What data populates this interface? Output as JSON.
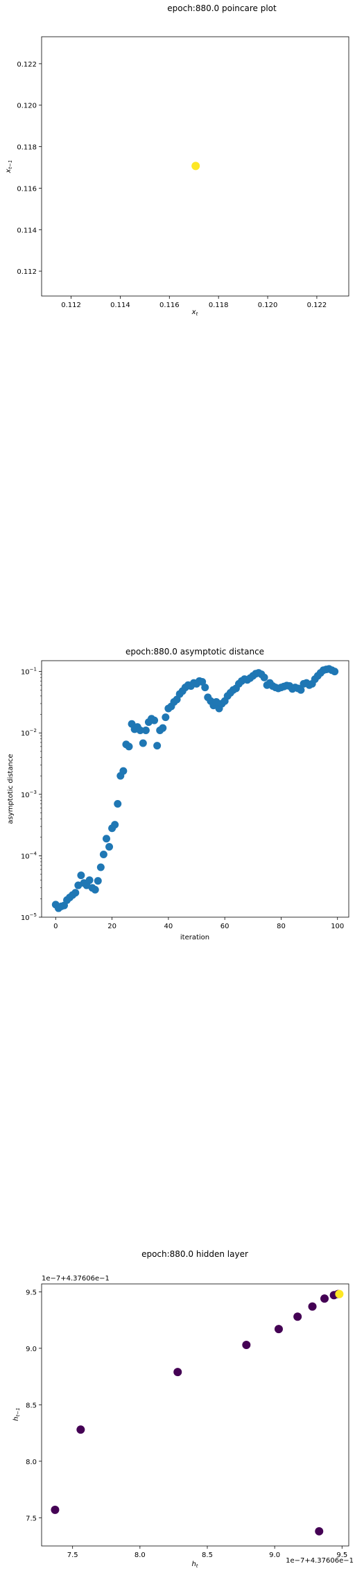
{
  "colors": {
    "blue": "#1f77b4",
    "viridis_yellow": "#fde725",
    "viridis_purple": "#440154",
    "axis": "#000000"
  },
  "chart_data": [
    {
      "type": "scatter",
      "title": "epoch:880.0 poincare plot",
      "xlabel": "x_t",
      "ylabel": "x_{t-1}",
      "xlim": [
        0.1108,
        0.1233
      ],
      "ylim": [
        0.1108,
        0.1233
      ],
      "xticks": [
        0.112,
        0.114,
        0.116,
        0.118,
        0.12,
        0.122
      ],
      "yticks": [
        0.112,
        0.114,
        0.116,
        0.118,
        0.12,
        0.122
      ],
      "xtick_labels": [
        "0.112",
        "0.114",
        "0.116",
        "0.118",
        "0.120",
        "0.122"
      ],
      "ytick_labels": [
        "0.112",
        "0.114",
        "0.116",
        "0.118",
        "0.120",
        "0.122"
      ],
      "points": [
        {
          "x": 0.11707,
          "y": 0.11707
        }
      ],
      "color": "viridis_yellow"
    },
    {
      "type": "scatter",
      "title": "epoch:880.0 asymptotic distance",
      "xlabel": "iteration",
      "ylabel": "asymptotic distance",
      "yscale": "log",
      "xlim": [
        -5,
        104
      ],
      "ylim": [
        1e-05,
        0.15
      ],
      "xticks": [
        0,
        20,
        40,
        60,
        80,
        100
      ],
      "xtick_labels": [
        "0",
        "20",
        "40",
        "60",
        "80",
        "100"
      ],
      "yticks": [
        1e-05,
        0.0001,
        0.001,
        0.01,
        0.1
      ],
      "ytick_labels": [
        [
          "10",
          "−5"
        ],
        [
          "10",
          "−4"
        ],
        [
          "10",
          "−3"
        ],
        [
          "10",
          "−2"
        ],
        [
          "10",
          "−1"
        ]
      ],
      "x": [
        0,
        1,
        2,
        3,
        4,
        5,
        6,
        7,
        8,
        9,
        10,
        11,
        12,
        13,
        14,
        15,
        16,
        17,
        18,
        19,
        20,
        21,
        22,
        23,
        24,
        25,
        26,
        27,
        28,
        29,
        30,
        31,
        32,
        33,
        34,
        35,
        36,
        37,
        38,
        39,
        40,
        41,
        42,
        43,
        44,
        45,
        46,
        47,
        48,
        49,
        50,
        51,
        52,
        53,
        54,
        55,
        56,
        57,
        58,
        59,
        60,
        61,
        62,
        63,
        64,
        65,
        66,
        67,
        68,
        69,
        70,
        71,
        72,
        73,
        74,
        75,
        76,
        77,
        78,
        79,
        80,
        81,
        82,
        83,
        84,
        85,
        86,
        87,
        88,
        89,
        90,
        91,
        92,
        93,
        94,
        95,
        96,
        97,
        98,
        99
      ],
      "y": [
        1.6e-05,
        1.4e-05,
        1.5e-05,
        1.55e-05,
        1.9e-05,
        2.1e-05,
        2.3e-05,
        2.5e-05,
        3.3e-05,
        4.8e-05,
        3.6e-05,
        3.3e-05,
        4e-05,
        3e-05,
        2.8e-05,
        3.9e-05,
        6.5e-05,
        0.000105,
        0.00019,
        0.00014,
        0.00028,
        0.00032,
        0.0007,
        0.002,
        0.0024,
        0.0065,
        0.006,
        0.014,
        0.0115,
        0.0125,
        0.011,
        0.0068,
        0.011,
        0.015,
        0.017,
        0.016,
        0.0062,
        0.011,
        0.012,
        0.018,
        0.025,
        0.027,
        0.032,
        0.035,
        0.043,
        0.048,
        0.055,
        0.06,
        0.058,
        0.065,
        0.063,
        0.07,
        0.068,
        0.055,
        0.038,
        0.033,
        0.028,
        0.032,
        0.025,
        0.03,
        0.033,
        0.04,
        0.045,
        0.05,
        0.053,
        0.063,
        0.07,
        0.075,
        0.073,
        0.078,
        0.085,
        0.092,
        0.095,
        0.09,
        0.08,
        0.06,
        0.065,
        0.058,
        0.055,
        0.053,
        0.055,
        0.057,
        0.059,
        0.058,
        0.052,
        0.055,
        0.053,
        0.05,
        0.063,
        0.065,
        0.06,
        0.063,
        0.075,
        0.085,
        0.095,
        0.105,
        0.108,
        0.11,
        0.105,
        0.1
      ],
      "color": "blue"
    },
    {
      "type": "scatter",
      "title": "epoch:880.0 hidden layer",
      "xlabel": "h_t",
      "ylabel": "h_{t-1}",
      "offset_label_y": "1e−7+4.37606e−1",
      "offset_label_x": "1e−7+4.37606e−1",
      "xlim": [
        7.27,
        9.55
      ],
      "ylim": [
        7.25,
        9.57
      ],
      "xticks": [
        7.5,
        8.0,
        8.5,
        9.0,
        9.5
      ],
      "yticks": [
        7.5,
        8.0,
        8.5,
        9.0,
        9.5
      ],
      "xtick_labels": [
        "7.5",
        "8.0",
        "8.5",
        "9.0",
        "9.5"
      ],
      "ytick_labels": [
        "7.5",
        "8.0",
        "8.5",
        "9.0",
        "9.5"
      ],
      "points": [
        {
          "x": 7.37,
          "y": 7.57,
          "c": "viridis_purple"
        },
        {
          "x": 7.56,
          "y": 8.28,
          "c": "viridis_purple"
        },
        {
          "x": 8.28,
          "y": 8.79,
          "c": "viridis_purple"
        },
        {
          "x": 8.79,
          "y": 9.03,
          "c": "viridis_purple"
        },
        {
          "x": 9.03,
          "y": 9.17,
          "c": "viridis_purple"
        },
        {
          "x": 9.17,
          "y": 9.28,
          "c": "viridis_purple"
        },
        {
          "x": 9.28,
          "y": 9.37,
          "c": "viridis_purple"
        },
        {
          "x": 9.37,
          "y": 9.44,
          "c": "viridis_purple"
        },
        {
          "x": 9.44,
          "y": 9.47,
          "c": "viridis_purple"
        },
        {
          "x": 9.47,
          "y": 9.48,
          "c": "viridis_purple"
        },
        {
          "x": 9.48,
          "y": 9.48,
          "c": "viridis_yellow"
        },
        {
          "x": 9.33,
          "y": 7.38,
          "c": "viridis_purple"
        }
      ]
    }
  ]
}
